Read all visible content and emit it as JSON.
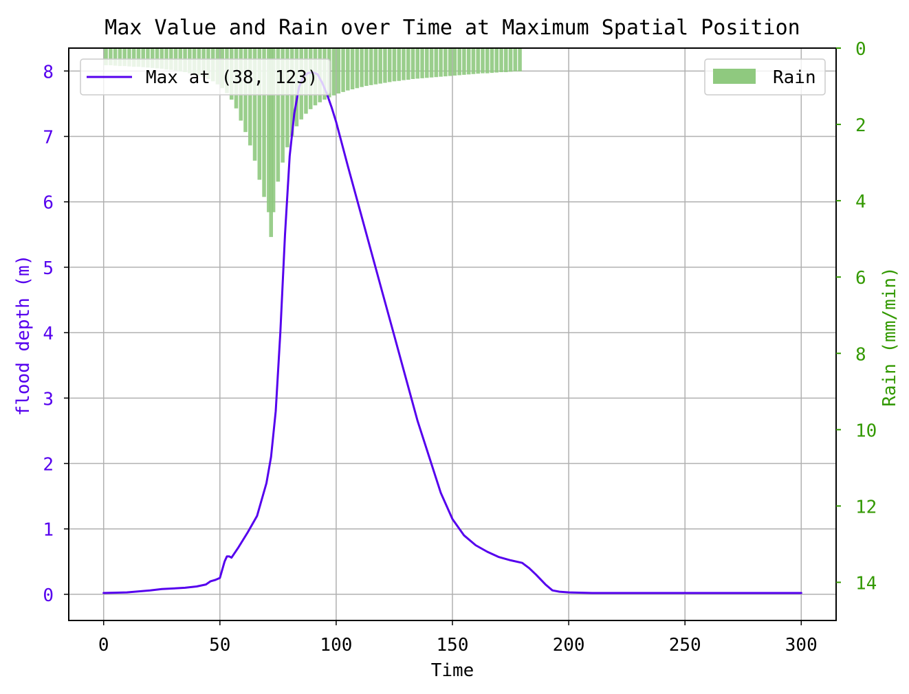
{
  "chart_data": {
    "type": "line",
    "title": "Max Value and Rain over Time at Maximum Spatial Position",
    "xlabel": "Time",
    "ylabel": "flood depth (m)",
    "ylabel_right": "Rain (mm/min)",
    "xlim": [
      -15,
      315
    ],
    "ylim": [
      -0.4,
      8.35
    ],
    "ylim_right": [
      15,
      0
    ],
    "right_axis_inverted": true,
    "grid": true,
    "x_ticks": [
      0,
      50,
      100,
      150,
      200,
      250,
      300
    ],
    "y_ticks": [
      0,
      1,
      2,
      3,
      4,
      5,
      6,
      7,
      8
    ],
    "y_ticks_right": [
      0,
      2,
      4,
      6,
      8,
      10,
      12,
      14
    ],
    "colors": {
      "line": "#5500ee",
      "rain": "#8fc97f",
      "left_axis": "#5500ee",
      "right_axis": "#339900"
    },
    "legend_left": {
      "placement": "upper-left"
    },
    "legend_right": {
      "placement": "upper-right"
    },
    "series": [
      {
        "name": "Max at (38, 123)",
        "type": "line",
        "axis": "left",
        "x": [
          0,
          10,
          20,
          25,
          30,
          35,
          40,
          44,
          46,
          48,
          50,
          52,
          53,
          54,
          55,
          58,
          62,
          66,
          70,
          72,
          74,
          76,
          78,
          80,
          82,
          84,
          86,
          88,
          90,
          92,
          94,
          96,
          98,
          100,
          105,
          110,
          115,
          120,
          125,
          130,
          135,
          140,
          145,
          150,
          155,
          160,
          165,
          170,
          175,
          180,
          183,
          186,
          190,
          193,
          196,
          200,
          210,
          220,
          250,
          280,
          300
        ],
        "values": [
          0.02,
          0.03,
          0.06,
          0.08,
          0.09,
          0.1,
          0.12,
          0.15,
          0.2,
          0.22,
          0.25,
          0.5,
          0.58,
          0.58,
          0.56,
          0.72,
          0.95,
          1.2,
          1.7,
          2.1,
          2.8,
          4.0,
          5.5,
          6.7,
          7.35,
          7.75,
          7.92,
          7.97,
          7.98,
          7.95,
          7.82,
          7.65,
          7.45,
          7.22,
          6.55,
          5.9,
          5.25,
          4.6,
          3.95,
          3.3,
          2.65,
          2.1,
          1.55,
          1.15,
          0.9,
          0.75,
          0.65,
          0.57,
          0.52,
          0.48,
          0.4,
          0.3,
          0.15,
          0.06,
          0.04,
          0.03,
          0.02,
          0.02,
          0.02,
          0.02,
          0.02
        ]
      },
      {
        "name": "Rain",
        "type": "bar",
        "axis": "right",
        "x": [
          0,
          2,
          4,
          6,
          8,
          10,
          12,
          14,
          16,
          18,
          20,
          22,
          24,
          26,
          28,
          30,
          32,
          34,
          36,
          38,
          40,
          42,
          44,
          46,
          48,
          50,
          52,
          54,
          56,
          58,
          60,
          62,
          64,
          66,
          68,
          70,
          71,
          72,
          74,
          76,
          78,
          80,
          82,
          84,
          86,
          88,
          90,
          92,
          94,
          96,
          98,
          100,
          102,
          104,
          106,
          108,
          110,
          112,
          114,
          116,
          118,
          120,
          122,
          124,
          126,
          128,
          130,
          132,
          134,
          136,
          138,
          140,
          142,
          144,
          146,
          148,
          150,
          152,
          154,
          156,
          158,
          160,
          162,
          164,
          166,
          168,
          170,
          172,
          174,
          176,
          178
        ],
        "values": [
          0.45,
          0.45,
          0.46,
          0.47,
          0.47,
          0.48,
          0.49,
          0.49,
          0.5,
          0.51,
          0.52,
          0.53,
          0.54,
          0.56,
          0.57,
          0.59,
          0.61,
          0.63,
          0.66,
          0.69,
          0.72,
          0.76,
          0.81,
          0.87,
          0.95,
          1.05,
          1.18,
          1.35,
          1.58,
          1.9,
          2.2,
          2.55,
          2.95,
          3.45,
          3.9,
          4.3,
          4.95,
          4.3,
          3.5,
          3.0,
          2.6,
          2.3,
          2.05,
          1.87,
          1.72,
          1.6,
          1.5,
          1.42,
          1.35,
          1.29,
          1.24,
          1.19,
          1.15,
          1.11,
          1.08,
          1.05,
          1.02,
          0.99,
          0.97,
          0.95,
          0.93,
          0.91,
          0.89,
          0.87,
          0.86,
          0.84,
          0.83,
          0.81,
          0.8,
          0.79,
          0.78,
          0.77,
          0.76,
          0.75,
          0.74,
          0.73,
          0.72,
          0.71,
          0.7,
          0.69,
          0.68,
          0.67,
          0.66,
          0.66,
          0.65,
          0.64,
          0.63,
          0.63,
          0.62,
          0.61,
          0.61
        ]
      }
    ]
  }
}
